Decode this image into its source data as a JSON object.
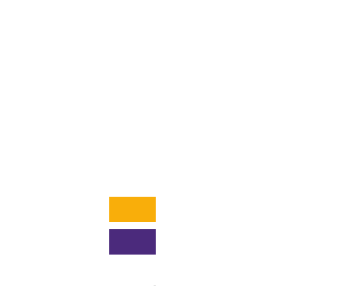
{
  "swatches": [
    {
      "color": "#f9ae0a"
    },
    {
      "color": "#4b2a7c"
    }
  ]
}
